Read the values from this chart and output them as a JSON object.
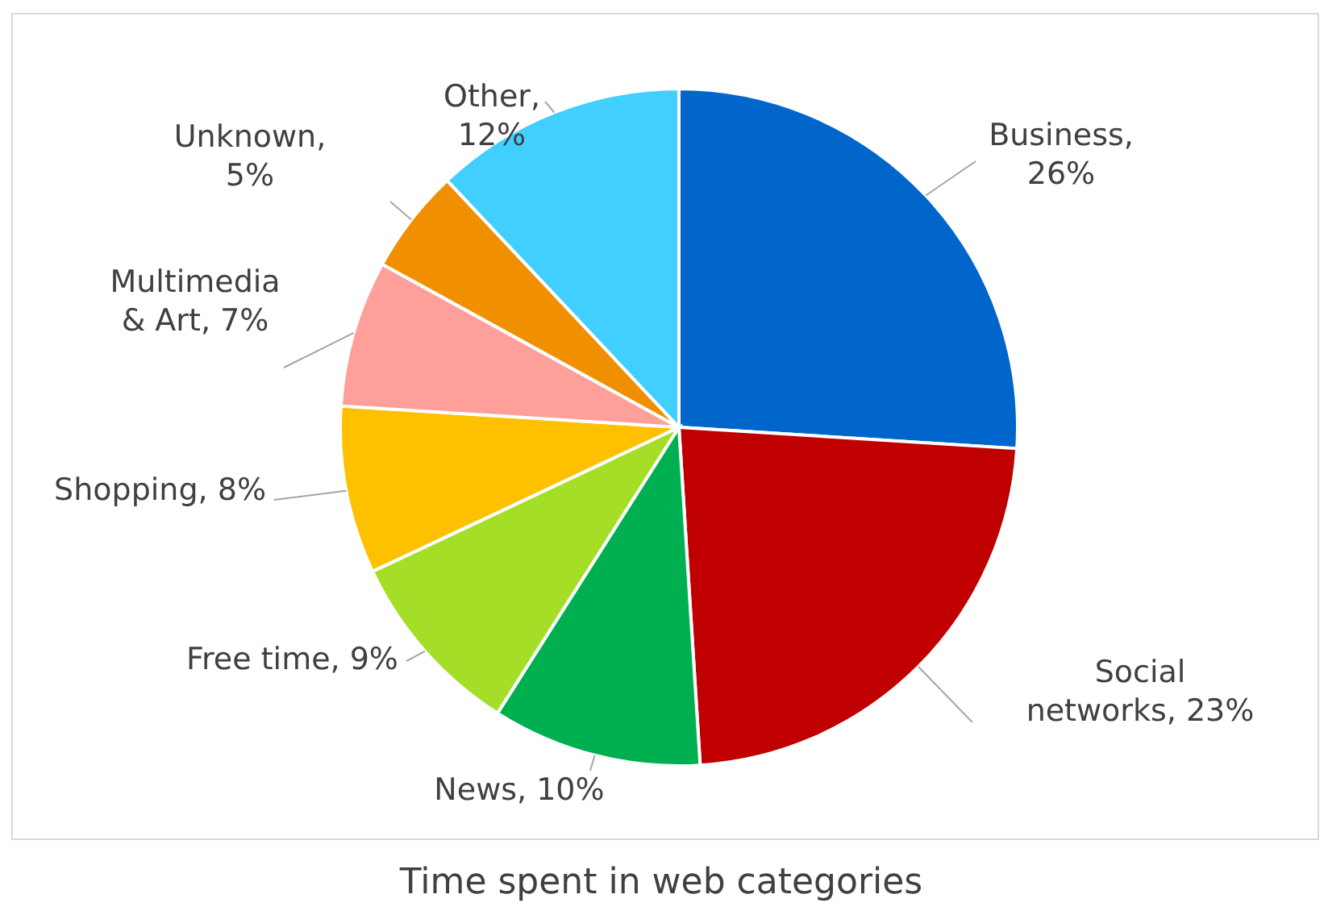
{
  "chart_data": {
    "type": "pie",
    "title": "Time spent in web categories",
    "categories": [
      "Business",
      "Social networks",
      "News",
      "Free time",
      "Shopping",
      "Multimedia & Art",
      "Unknown",
      "Other"
    ],
    "values": [
      26,
      23,
      10,
      9,
      8,
      7,
      5,
      12
    ],
    "value_labels": [
      ", 26%",
      ", 23%",
      ", 10%",
      ", 9%",
      ", 8%",
      ", 7%",
      ", 5%",
      ", 12%"
    ],
    "colors": [
      "#0066cc",
      "#c00000",
      "#00b050",
      "#a4de26",
      "#ffc000",
      "#ff9f99",
      "#f09000",
      "#40cfff"
    ]
  }
}
